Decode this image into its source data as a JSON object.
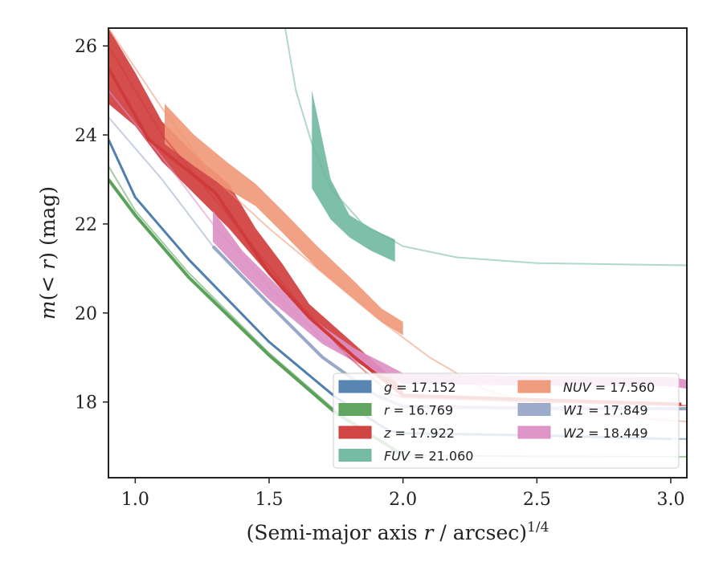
{
  "chart_data": {
    "type": "line",
    "xlabel": "(Semi-major axis r / arcsec)^1/4",
    "ylabel": "m(< r) (mag)",
    "xlim": [
      0.9,
      3.06
    ],
    "ylim": [
      26.4,
      16.3
    ],
    "y_inverted": true,
    "x_ticks": [
      "1.0",
      "1.5",
      "2.0",
      "2.5",
      "3.0"
    ],
    "y_ticks": [
      "18",
      "20",
      "22",
      "24",
      "26"
    ],
    "grid": false,
    "legend_position": "lower-right",
    "series": [
      {
        "name": "g = 17.152",
        "color": "#4f7faf",
        "width": 3,
        "model": [
          [
            0.9,
            23.9
          ],
          [
            1.0,
            22.6
          ],
          [
            1.2,
            21.2
          ],
          [
            1.5,
            19.35
          ],
          [
            1.75,
            18.1
          ],
          [
            1.95,
            17.35
          ],
          [
            2.0,
            17.3
          ],
          [
            2.5,
            17.25
          ],
          [
            3.0,
            17.17
          ],
          [
            3.06,
            17.17
          ]
        ],
        "data": [
          [
            0.9,
            23.9
          ],
          [
            1.0,
            22.6
          ],
          [
            1.2,
            21.2
          ],
          [
            1.5,
            19.35
          ],
          [
            1.75,
            18.1
          ],
          [
            1.95,
            17.35
          ],
          [
            2.0,
            17.3
          ],
          [
            2.5,
            17.25
          ],
          [
            3.0,
            17.17
          ]
        ]
      },
      {
        "name": "r = 16.769",
        "color": "#5aa15a",
        "width": 4,
        "model": [
          [
            0.9,
            23.3
          ],
          [
            1.0,
            22.3
          ],
          [
            1.2,
            20.9
          ],
          [
            1.5,
            19.1
          ],
          [
            1.75,
            17.8
          ],
          [
            1.95,
            17.0
          ],
          [
            2.0,
            16.8
          ],
          [
            2.5,
            16.78
          ],
          [
            3.06,
            16.77
          ]
        ],
        "data": [
          [
            0.9,
            23.0
          ],
          [
            1.0,
            22.2
          ],
          [
            1.2,
            20.8
          ],
          [
            1.5,
            19.05
          ],
          [
            1.75,
            17.75
          ],
          [
            1.95,
            17.0
          ],
          [
            2.0,
            16.8
          ]
        ]
      },
      {
        "name": "z = 17.922",
        "color": "#cf3b3b",
        "width": 4,
        "model": [
          [
            0.9,
            26.0
          ],
          [
            1.1,
            24.0
          ],
          [
            1.4,
            21.8
          ],
          [
            1.6,
            20.3
          ],
          [
            1.8,
            19.0
          ],
          [
            1.95,
            18.2
          ],
          [
            2.0,
            18.1
          ],
          [
            2.5,
            18.0
          ],
          [
            3.06,
            17.92
          ]
        ],
        "data": [
          [
            0.9,
            25.5
          ],
          [
            1.05,
            23.9
          ],
          [
            1.3,
            22.7
          ],
          [
            1.5,
            20.9
          ],
          [
            1.65,
            19.9
          ],
          [
            1.82,
            19.0
          ],
          [
            2.0,
            18.15
          ],
          [
            2.5,
            18.05
          ],
          [
            3.04,
            17.95
          ]
        ],
        "band": {
          "x": [
            0.9,
            1.0,
            1.1,
            1.25,
            1.35,
            1.45,
            1.55,
            1.65,
            1.8,
            1.95,
            2.0
          ],
          "lo": [
            24.7,
            24.2,
            23.4,
            22.5,
            21.9,
            21.2,
            20.5,
            19.9,
            19.1,
            18.4,
            18.1
          ],
          "hi": [
            26.4,
            25.4,
            24.3,
            23.4,
            22.9,
            21.9,
            21.1,
            20.2,
            19.4,
            18.6,
            18.3
          ]
        }
      },
      {
        "name": "FUV = 21.060",
        "color": "#6fb8a0",
        "width": 2,
        "model": [
          [
            1.56,
            26.4
          ],
          [
            1.6,
            25.0
          ],
          [
            1.66,
            23.8
          ],
          [
            1.73,
            22.8
          ],
          [
            1.85,
            22.0
          ],
          [
            2.0,
            21.5
          ],
          [
            2.2,
            21.25
          ],
          [
            2.5,
            21.12
          ],
          [
            3.06,
            21.07
          ]
        ],
        "band": {
          "x": [
            1.66,
            1.73,
            1.8,
            1.88,
            1.97
          ],
          "lo": [
            22.8,
            22.1,
            21.7,
            21.4,
            21.15
          ],
          "hi": [
            25.0,
            23.0,
            22.2,
            21.9,
            21.65
          ]
        }
      },
      {
        "name": "NUV = 17.560",
        "color": "#ef9878",
        "width": 2,
        "model": [
          [
            0.9,
            26.4
          ],
          [
            1.1,
            24.6
          ],
          [
            1.3,
            23.0
          ],
          [
            1.5,
            21.9
          ],
          [
            1.7,
            20.9
          ],
          [
            1.9,
            19.9
          ],
          [
            2.1,
            19.0
          ],
          [
            2.3,
            18.3
          ],
          [
            2.5,
            17.9
          ],
          [
            2.7,
            17.72
          ],
          [
            3.06,
            17.56
          ]
        ],
        "band": {
          "x": [
            1.11,
            1.22,
            1.34,
            1.45,
            1.55,
            1.68,
            1.82,
            1.92,
            2.0
          ],
          "lo": [
            23.8,
            23.3,
            22.8,
            22.4,
            21.8,
            21.0,
            20.3,
            19.8,
            19.5
          ],
          "hi": [
            24.7,
            24.0,
            23.4,
            22.9,
            22.3,
            21.5,
            20.7,
            20.1,
            19.8
          ]
        }
      },
      {
        "name": "W1 = 17.849",
        "color": "#98a8c8",
        "width": 4,
        "model": [
          [
            0.9,
            24.4
          ],
          [
            1.1,
            23.0
          ],
          [
            1.29,
            21.5
          ],
          [
            1.5,
            20.2
          ],
          [
            1.7,
            19.0
          ],
          [
            1.9,
            18.15
          ],
          [
            2.0,
            17.9
          ],
          [
            2.5,
            17.86
          ],
          [
            3.06,
            17.85
          ]
        ],
        "data": [
          [
            1.29,
            21.5
          ],
          [
            1.5,
            20.2
          ],
          [
            1.7,
            19.0
          ],
          [
            1.9,
            18.15
          ],
          [
            2.0,
            17.9
          ],
          [
            2.5,
            17.86
          ],
          [
            3.06,
            17.85
          ]
        ]
      },
      {
        "name": "W2 = 18.449",
        "color": "#dd8fc4",
        "width": 2,
        "model": [
          [
            0.9,
            25.0
          ],
          [
            1.1,
            23.5
          ],
          [
            1.29,
            22.0
          ],
          [
            1.5,
            20.6
          ],
          [
            1.7,
            19.4
          ],
          [
            1.9,
            18.7
          ],
          [
            2.0,
            18.5
          ],
          [
            2.5,
            18.47
          ],
          [
            3.06,
            18.45
          ]
        ],
        "band": {
          "x": [
            1.29,
            1.4,
            1.5,
            1.6,
            1.7,
            1.82,
            1.92,
            2.0,
            2.5,
            3.0,
            3.06
          ],
          "lo": [
            21.6,
            20.9,
            20.3,
            19.8,
            19.3,
            18.9,
            18.6,
            18.4,
            18.37,
            18.35,
            18.3
          ],
          "hi": [
            22.3,
            21.4,
            20.8,
            20.2,
            19.7,
            19.2,
            18.9,
            18.65,
            18.58,
            18.56,
            18.5
          ]
        }
      }
    ]
  }
}
